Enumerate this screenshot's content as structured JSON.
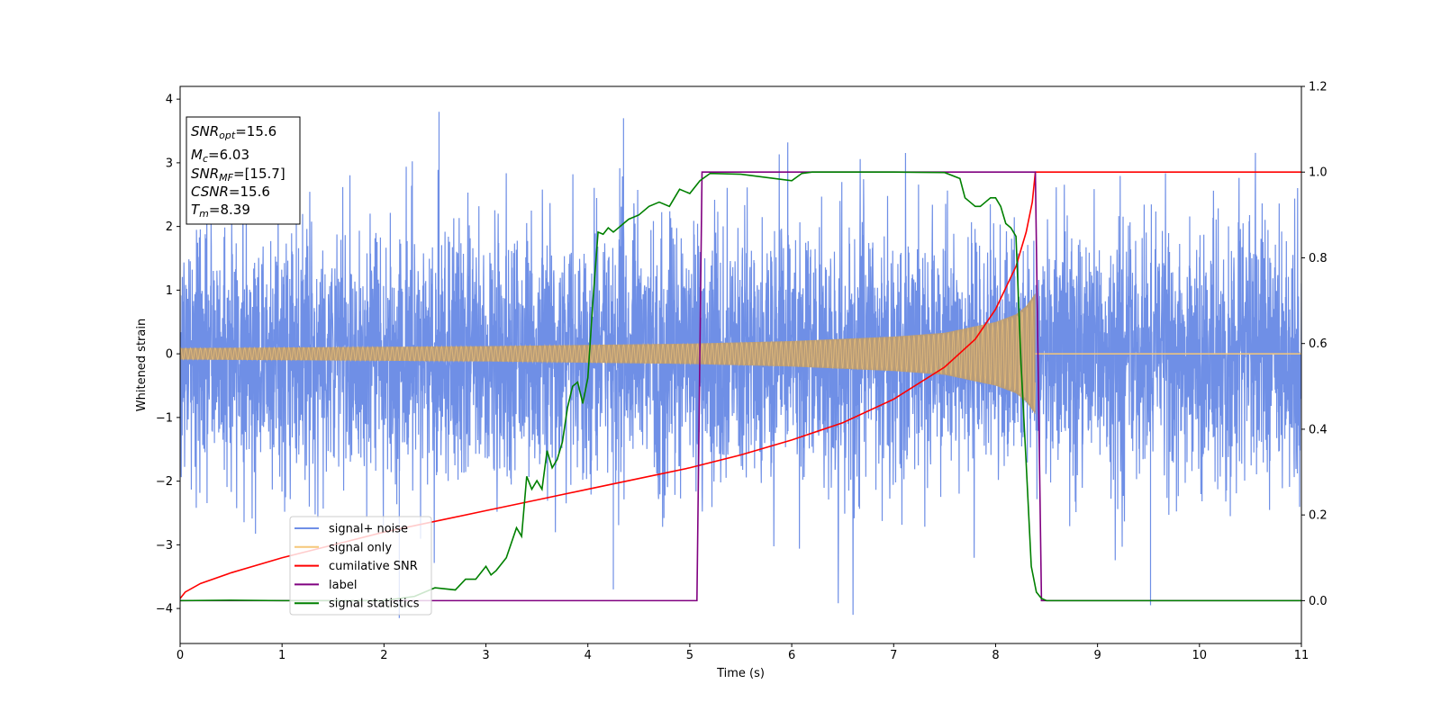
{
  "chart_data": {
    "type": "line",
    "xlabel": "Time (s)",
    "ylabel": "Whitened strain",
    "xlim": [
      0,
      11
    ],
    "ylim": [
      -4.55,
      4.2
    ],
    "y2lim": [
      -0.1,
      1.2
    ],
    "x_ticks": [
      0,
      1,
      2,
      3,
      4,
      5,
      6,
      7,
      8,
      9,
      10,
      11
    ],
    "y_ticks": [
      -4,
      -3,
      -2,
      -1,
      0,
      1,
      2,
      3,
      4
    ],
    "y2_ticks": [
      0.0,
      0.2,
      0.4,
      0.6,
      0.8,
      1.0,
      1.2
    ],
    "grid": false,
    "legend_location": "lower-left",
    "annotation": {
      "snr_opt_base": "SNR",
      "snr_opt_sub": "opt",
      "snr_opt_value": "=15.6",
      "mc_base": "M",
      "mc_sub": "c",
      "mc_value": "=6.03",
      "snr_mf_base": "SNR",
      "snr_mf_sub": "MF",
      "snr_mf_value": "=[15.7]",
      "csnr_base": "CSNR",
      "csnr_value": "=15.6",
      "tm_base": "T",
      "tm_sub": "m",
      "tm_value": "=8.39"
    },
    "series": [
      {
        "name": "signal+ noise",
        "color": "#6f8fe6",
        "axis": "left",
        "description_values": {
          "noise_std": 1.0,
          "peaks": [
            [
              2.54,
              3.8
            ],
            [
              2.15,
              -4.15
            ],
            [
              9.52,
              -3.95
            ],
            [
              4.25,
              -3.7
            ],
            [
              4.35,
              3.7
            ]
          ]
        }
      },
      {
        "name": "signal only",
        "color": "#f5c778",
        "axis": "left",
        "envelope": [
          [
            0,
            0.09
          ],
          [
            1,
            0.1
          ],
          [
            2,
            0.11
          ],
          [
            3,
            0.12
          ],
          [
            4,
            0.14
          ],
          [
            5,
            0.16
          ],
          [
            6,
            0.2
          ],
          [
            7,
            0.27
          ],
          [
            7.5,
            0.33
          ],
          [
            8,
            0.5
          ],
          [
            8.2,
            0.62
          ],
          [
            8.3,
            0.75
          ],
          [
            8.39,
            0.95
          ],
          [
            8.4,
            0.0
          ],
          [
            11,
            0.0
          ]
        ]
      },
      {
        "name": "cumilative SNR",
        "color": "#ff0000",
        "axis": "right",
        "x": [
          0,
          0.05,
          0.2,
          0.5,
          1,
          1.5,
          2,
          2.5,
          3,
          3.5,
          4,
          4.5,
          5,
          5.5,
          6,
          6.5,
          7,
          7.5,
          7.8,
          8,
          8.2,
          8.3,
          8.36,
          8.39,
          11
        ],
        "y": [
          0.005,
          0.02,
          0.04,
          0.065,
          0.1,
          0.13,
          0.16,
          0.185,
          0.21,
          0.235,
          0.26,
          0.285,
          0.31,
          0.34,
          0.375,
          0.415,
          0.47,
          0.545,
          0.61,
          0.68,
          0.78,
          0.86,
          0.93,
          1.0,
          1.0
        ]
      },
      {
        "name": "label",
        "color": "#800080",
        "axis": "right",
        "x": [
          0,
          5.07,
          5.12,
          8.39,
          8.45,
          11
        ],
        "y": [
          0.0,
          0.0,
          1.0,
          1.0,
          0.0,
          0.0
        ]
      },
      {
        "name": "signal statistics",
        "color": "#008000",
        "axis": "right",
        "x": [
          0,
          0.5,
          1,
          2,
          2.3,
          2.5,
          2.7,
          2.8,
          2.9,
          3.0,
          3.05,
          3.1,
          3.2,
          3.3,
          3.35,
          3.4,
          3.45,
          3.5,
          3.55,
          3.6,
          3.65,
          3.7,
          3.75,
          3.8,
          3.85,
          3.9,
          3.95,
          4.0,
          4.05,
          4.1,
          4.15,
          4.2,
          4.25,
          4.3,
          4.35,
          4.4,
          4.5,
          4.6,
          4.7,
          4.8,
          4.9,
          5.0,
          5.1,
          5.2,
          5.5,
          6.0,
          6.1,
          6.2,
          6.5,
          7.0,
          7.5,
          7.65,
          7.7,
          7.75,
          7.8,
          7.85,
          7.9,
          7.95,
          8.0,
          8.05,
          8.1,
          8.15,
          8.2,
          8.25,
          8.3,
          8.35,
          8.4,
          8.45,
          8.5,
          8.6,
          11
        ],
        "y": [
          0.0,
          0.001,
          0.0,
          0.0,
          0.01,
          0.03,
          0.025,
          0.05,
          0.05,
          0.08,
          0.06,
          0.07,
          0.1,
          0.17,
          0.15,
          0.29,
          0.26,
          0.28,
          0.26,
          0.35,
          0.31,
          0.33,
          0.37,
          0.45,
          0.5,
          0.51,
          0.46,
          0.52,
          0.7,
          0.86,
          0.855,
          0.87,
          0.86,
          0.87,
          0.88,
          0.89,
          0.9,
          0.92,
          0.93,
          0.92,
          0.96,
          0.95,
          0.98,
          0.997,
          0.995,
          0.98,
          0.997,
          1.0,
          1.0,
          1.0,
          0.999,
          0.985,
          0.94,
          0.93,
          0.92,
          0.92,
          0.93,
          0.94,
          0.94,
          0.92,
          0.88,
          0.87,
          0.85,
          0.55,
          0.32,
          0.08,
          0.02,
          0.005,
          0.0,
          0.0,
          0.0
        ]
      }
    ]
  }
}
